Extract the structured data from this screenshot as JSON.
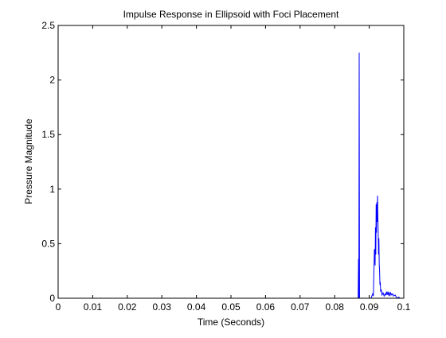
{
  "chart_data": {
    "type": "line",
    "title": "Impulse Response in Ellipsoid with Foci Placement",
    "xlabel": "Time (Seconds)",
    "ylabel": "Pressure Magnitude",
    "xlim": [
      0,
      0.1
    ],
    "ylim": [
      0,
      2.5
    ],
    "xticks": [
      0,
      0.01,
      0.02,
      0.03,
      0.04,
      0.05,
      0.06,
      0.07,
      0.08,
      0.09,
      0.1
    ],
    "xtick_labels": [
      "0",
      "0.01",
      "0.02",
      "0.03",
      "0.04",
      "0.05",
      "0.06",
      "0.07",
      "0.08",
      "0.09",
      "0.1"
    ],
    "yticks": [
      0,
      0.5,
      1,
      1.5,
      2,
      2.5
    ],
    "ytick_labels": [
      "0",
      "0.5",
      "1",
      "1.5",
      "2",
      "2.5"
    ],
    "grid": false,
    "series": [
      {
        "color": "#0000ff",
        "points": [
          [
            0.0,
            0
          ],
          [
            0.0868,
            0
          ],
          [
            0.0869,
            0.36
          ],
          [
            0.087,
            0
          ],
          [
            0.0871,
            2.25
          ],
          [
            0.0872,
            0
          ],
          [
            0.0875,
            0
          ],
          [
            0.0905,
            0
          ],
          [
            0.091,
            0.04
          ],
          [
            0.0912,
            0.02
          ],
          [
            0.0915,
            0.45
          ],
          [
            0.0917,
            0.3
          ],
          [
            0.0918,
            0.65
          ],
          [
            0.0919,
            0.4
          ],
          [
            0.092,
            0.86
          ],
          [
            0.0921,
            0.6
          ],
          [
            0.0922,
            0.88
          ],
          [
            0.0923,
            0.7
          ],
          [
            0.0924,
            0.94
          ],
          [
            0.0925,
            0.75
          ],
          [
            0.0926,
            0.6
          ],
          [
            0.0927,
            0.4
          ],
          [
            0.0928,
            0.55
          ],
          [
            0.0929,
            0.3
          ],
          [
            0.093,
            0.25
          ],
          [
            0.0931,
            0.12
          ],
          [
            0.0932,
            0.15
          ],
          [
            0.0933,
            0.06
          ],
          [
            0.0935,
            0.08
          ],
          [
            0.0937,
            0.03
          ],
          [
            0.094,
            0.05
          ],
          [
            0.0943,
            0.02
          ],
          [
            0.0946,
            0.04
          ],
          [
            0.0948,
            0.03
          ],
          [
            0.095,
            0.06
          ],
          [
            0.0952,
            0.03
          ],
          [
            0.0954,
            0.06
          ],
          [
            0.0956,
            0.03
          ],
          [
            0.0958,
            0.05
          ],
          [
            0.096,
            0.02
          ],
          [
            0.0962,
            0.05
          ],
          [
            0.0965,
            0.03
          ],
          [
            0.0968,
            0.04
          ],
          [
            0.097,
            0.02
          ],
          [
            0.0975,
            0.03
          ],
          [
            0.098,
            0.0
          ],
          [
            0.0985,
            0.01
          ],
          [
            0.099,
            0.0
          ],
          [
            0.1,
            0
          ]
        ]
      }
    ]
  }
}
